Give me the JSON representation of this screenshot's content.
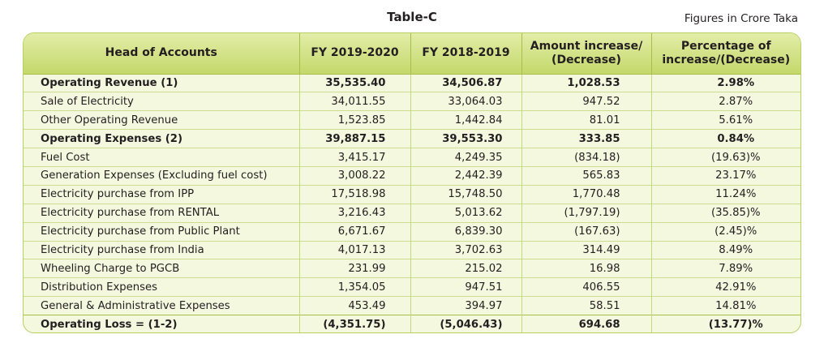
{
  "title": "Table-C",
  "note": "Figures in Crore Taka",
  "headers": [
    "Head of Accounts",
    "FY 2019-2020",
    "FY 2018-2019",
    "Amount increase/ (Decrease)",
    "Percentage of increase/(Decrease)"
  ],
  "rows": [
    {
      "name": "Operating Revenue (1)",
      "fy2020": "35,535.40",
      "fy2019": "34,506.87",
      "amount": "1,028.53",
      "pct": "2.98%",
      "bold": true
    },
    {
      "name": "Sale of Electricity",
      "fy2020": "34,011.55",
      "fy2019": "33,064.03",
      "amount": "947.52",
      "pct": "2.87%",
      "bold": false
    },
    {
      "name": "Other Operating Revenue",
      "fy2020": "1,523.85",
      "fy2019": "1,442.84",
      "amount": "81.01",
      "pct": "5.61%",
      "bold": false
    },
    {
      "name": "Operating Expenses (2)",
      "fy2020": "39,887.15",
      "fy2019": "39,553.30",
      "amount": "333.85",
      "pct": "0.84%",
      "bold": true
    },
    {
      "name": "Fuel Cost",
      "fy2020": "3,415.17",
      "fy2019": "4,249.35",
      "amount": "(834.18)",
      "pct": "(19.63)%",
      "bold": false
    },
    {
      "name": "Generation Expenses (Excluding fuel cost)",
      "fy2020": "3,008.22",
      "fy2019": "2,442.39",
      "amount": "565.83",
      "pct": "23.17%",
      "bold": false
    },
    {
      "name": "Electricity purchase from IPP",
      "fy2020": "17,518.98",
      "fy2019": "15,748.50",
      "amount": "1,770.48",
      "pct": "11.24%",
      "bold": false
    },
    {
      "name": "Electricity purchase from RENTAL",
      "fy2020": "3,216.43",
      "fy2019": "5,013.62",
      "amount": "(1,797.19)",
      "pct": "(35.85)%",
      "bold": false
    },
    {
      "name": "Electricity purchase from Public Plant",
      "fy2020": "6,671.67",
      "fy2019": "6,839.30",
      "amount": "(167.63)",
      "pct": "(2.45)%",
      "bold": false
    },
    {
      "name": "Electricity purchase from India",
      "fy2020": "4,017.13",
      "fy2019": "3,702.63",
      "amount": "314.49",
      "pct": "8.49%",
      "bold": false
    },
    {
      "name": "Wheeling Charge to PGCB",
      "fy2020": "231.99",
      "fy2019": "215.02",
      "amount": "16.98",
      "pct": "7.89%",
      "bold": false
    },
    {
      "name": "Distribution Expenses",
      "fy2020": "1,354.05",
      "fy2019": "947.51",
      "amount": "406.55",
      "pct": "42.91%",
      "bold": false
    },
    {
      "name": "General & Administrative Expenses",
      "fy2020": "453.49",
      "fy2019": "394.97",
      "amount": "58.51",
      "pct": "14.81%",
      "bold": false
    },
    {
      "name": "Operating Loss = (1-2)",
      "fy2020": "(4,351.75)",
      "fy2019": "(5,046.43)",
      "amount": "694.68",
      "pct": "(13.77)%",
      "bold": true
    }
  ]
}
